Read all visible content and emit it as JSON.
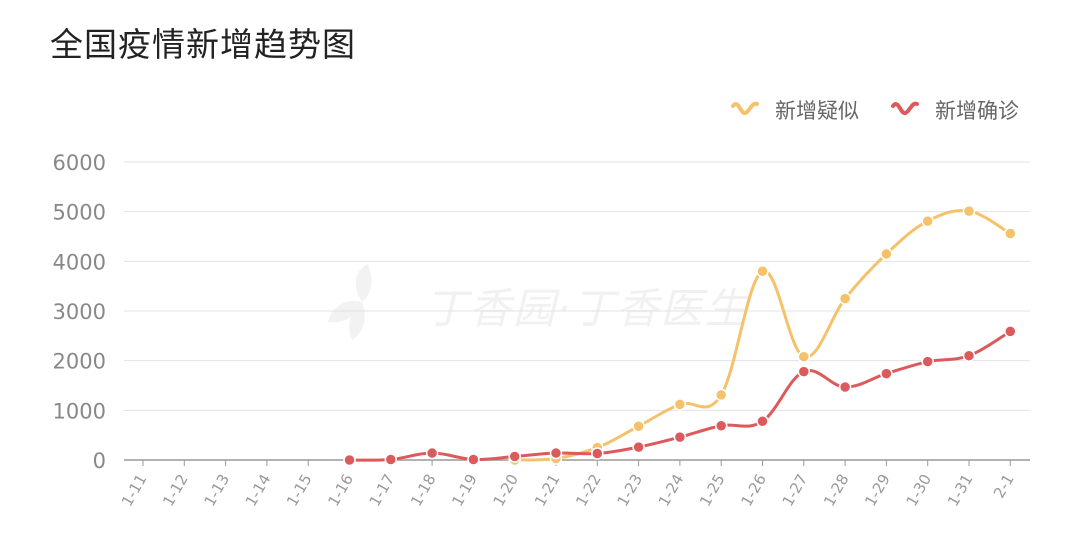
{
  "title": "全国疫情新增趋势图",
  "watermark": "丁香园·丁香医生",
  "chart_data": {
    "type": "line",
    "title": "全国疫情新增趋势图",
    "categories": [
      "1-11",
      "1-12",
      "1-13",
      "1-14",
      "1-15",
      "1-16",
      "1-17",
      "1-18",
      "1-19",
      "1-20",
      "1-21",
      "1-22",
      "1-23",
      "1-24",
      "1-25",
      "1-26",
      "1-27",
      "1-28",
      "1-29",
      "1-30",
      "1-31",
      "2-1"
    ],
    "ylim": [
      0,
      6000
    ],
    "yticks": [
      0,
      1000,
      2000,
      3000,
      4000,
      5000,
      6000
    ],
    "grid": true,
    "legend_position": "top-right",
    "series": [
      {
        "name": "新增疑似",
        "color": "#f5c26b",
        "values": [
          null,
          null,
          null,
          null,
          null,
          null,
          null,
          null,
          null,
          0,
          30,
          250,
          680,
          1120,
          1310,
          3800,
          2080,
          3250,
          4150,
          4810,
          5010,
          4560
        ]
      },
      {
        "name": "新增确诊",
        "color": "#dc5a5c",
        "values": [
          null,
          null,
          null,
          null,
          null,
          0,
          10,
          140,
          10,
          70,
          140,
          130,
          260,
          460,
          690,
          780,
          1780,
          1470,
          1740,
          1980,
          2100,
          2590
        ]
      }
    ]
  }
}
